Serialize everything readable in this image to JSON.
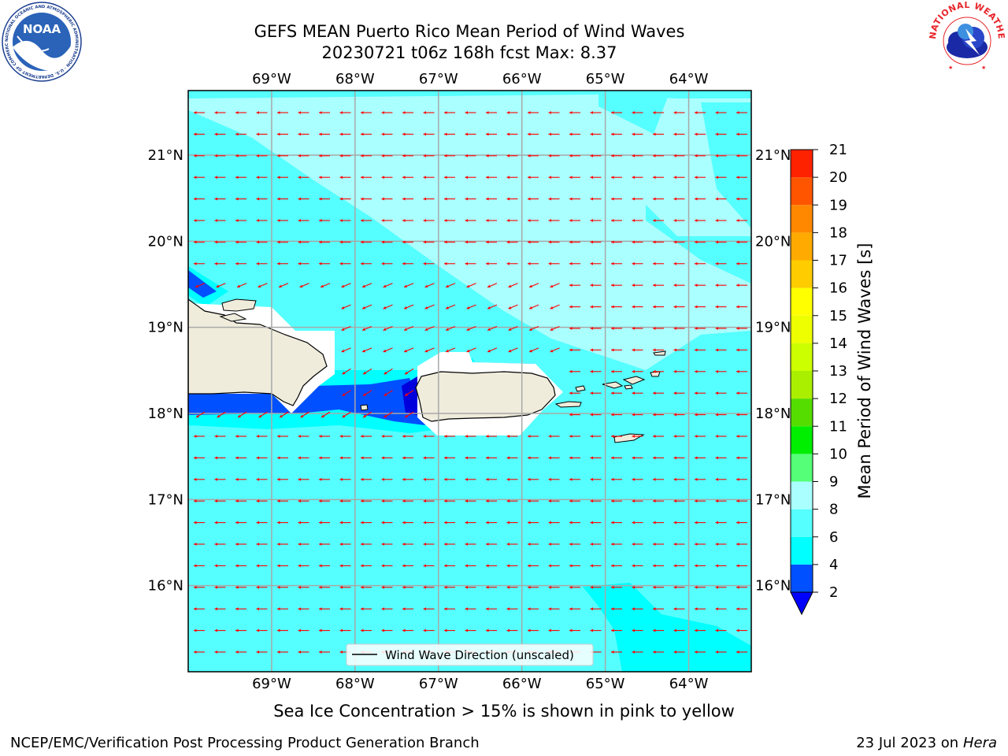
{
  "title": {
    "line1": "GEFS MEAN Puerto Rico Mean Period of Wind Waves",
    "line2": "20230721 t06z 168h fcst   Max: 8.37"
  },
  "logos": {
    "noaa": {
      "text": "NOAA",
      "ring_text": "NATIONAL OCEANIC AND ATMOSPHERIC ADMINISTRATION · U.S. DEPARTMENT OF COMMERCE"
    },
    "nws": {
      "ring_text": "NATIONAL WEATHER SERVICE"
    }
  },
  "map": {
    "lon_range": [
      -70.0,
      -63.25
    ],
    "lat_range": [
      15.0,
      21.75
    ],
    "lon_ticks": [
      {
        "value": -69,
        "label": "69°W"
      },
      {
        "value": -68,
        "label": "68°W"
      },
      {
        "value": -67,
        "label": "67°W"
      },
      {
        "value": -66,
        "label": "66°W"
      },
      {
        "value": -65,
        "label": "65°W"
      },
      {
        "value": -64,
        "label": "64°W"
      }
    ],
    "lat_ticks": [
      {
        "value": 21,
        "label": "21°N"
      },
      {
        "value": 20,
        "label": "20°N"
      },
      {
        "value": 19,
        "label": "19°N"
      },
      {
        "value": 18,
        "label": "18°N"
      },
      {
        "value": 17,
        "label": "17°N"
      },
      {
        "value": 16,
        "label": "16°N"
      }
    ],
    "grid": true,
    "land_color": "#efecdc",
    "arrow_color": "#ff0000",
    "vector_direction": "westward",
    "legend": {
      "label": "Wind Wave Direction (unscaled)",
      "position": "lower-center"
    }
  },
  "colorbar": {
    "label": "Mean Period of Wind Waves [s]",
    "ticks": [
      2,
      4,
      6,
      8,
      9,
      10,
      11,
      12,
      13,
      14,
      15,
      16,
      17,
      18,
      19,
      20,
      21
    ],
    "colors": [
      "#0050ff",
      "#00ffff",
      "#55ffff",
      "#aaffff",
      "#55ff77",
      "#00ee00",
      "#55dd00",
      "#aaee00",
      "#ccff00",
      "#eeff00",
      "#ffff00",
      "#ffcc00",
      "#ffaa00",
      "#ff8800",
      "#ff5500",
      "#ff2200",
      "#ff0000"
    ],
    "under_color": "#0000ff",
    "extend": "min"
  },
  "footer": {
    "note": "Sea Ice Concentration > 15% is shown in pink to yellow",
    "branch": "NCEP/EMC/Verification Post Processing Product Generation Branch",
    "date": "23 Jul 2023 on",
    "host": "Hera"
  }
}
